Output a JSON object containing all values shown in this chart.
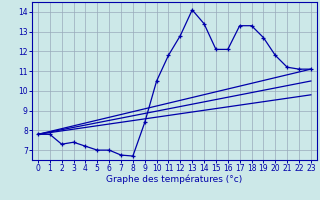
{
  "xlabel": "Graphe des températures (°c)",
  "bg_color": "#cce8e8",
  "grid_color": "#99aabb",
  "line_color": "#0000aa",
  "ylim": [
    6.5,
    14.5
  ],
  "xlim": [
    -0.5,
    23.5
  ],
  "yticks": [
    7,
    8,
    9,
    10,
    11,
    12,
    13,
    14
  ],
  "xticks": [
    0,
    1,
    2,
    3,
    4,
    5,
    6,
    7,
    8,
    9,
    10,
    11,
    12,
    13,
    14,
    15,
    16,
    17,
    18,
    19,
    20,
    21,
    22,
    23
  ],
  "line1_x": [
    0,
    1,
    2,
    3,
    4,
    5,
    6,
    7,
    8,
    9,
    10,
    11,
    12,
    13,
    14,
    15,
    16,
    17,
    18,
    19,
    20,
    21,
    22,
    23
  ],
  "line1_y": [
    7.8,
    7.8,
    7.3,
    7.4,
    7.2,
    7.0,
    7.0,
    6.75,
    6.7,
    8.4,
    10.5,
    11.8,
    12.8,
    14.1,
    13.4,
    12.1,
    12.1,
    13.3,
    13.3,
    12.7,
    11.8,
    11.2,
    11.1,
    11.1
  ],
  "line2_x": [
    0,
    23
  ],
  "line2_y": [
    7.8,
    11.1
  ],
  "line3_x": [
    0,
    23
  ],
  "line3_y": [
    7.8,
    10.5
  ],
  "line4_x": [
    0,
    23
  ],
  "line4_y": [
    7.8,
    9.8
  ]
}
